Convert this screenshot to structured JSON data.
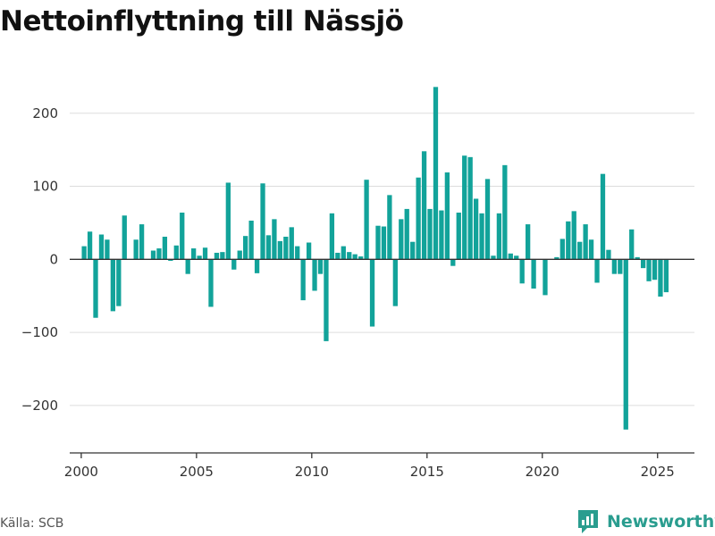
{
  "title": "Nettoinflyttning till Nässjö",
  "source": "Källa: SCB",
  "brand": {
    "name": "Newsworthy",
    "icon": "newsworthy-logo-icon"
  },
  "colors": {
    "bar": "#12a39a",
    "grid": "#dddddd",
    "axis": "#333333",
    "brand": "#2a9d8f"
  },
  "chart_data": {
    "type": "bar",
    "title": "Nettoinflyttning till Nässjö",
    "xlabel": "",
    "ylabel": "",
    "xlim": [
      1999.5,
      2026.6
    ],
    "ylim": [
      -265,
      245
    ],
    "grid": true,
    "x_ticks": [
      2000,
      2005,
      2010,
      2015,
      2020,
      2025
    ],
    "y_ticks": [
      200,
      100,
      0,
      -100,
      -200
    ],
    "y_tick_labels": [
      "200",
      "100",
      "0",
      "−100",
      "−200"
    ],
    "x": [
      2000.125,
      2000.375,
      2000.625,
      2000.875,
      2001.125,
      2001.375,
      2001.625,
      2001.875,
      2002.125,
      2002.375,
      2002.625,
      2002.875,
      2003.125,
      2003.375,
      2003.625,
      2003.875,
      2004.125,
      2004.375,
      2004.625,
      2004.875,
      2005.125,
      2005.375,
      2005.625,
      2005.875,
      2006.125,
      2006.375,
      2006.625,
      2006.875,
      2007.125,
      2007.375,
      2007.625,
      2007.875,
      2008.125,
      2008.375,
      2008.625,
      2008.875,
      2009.125,
      2009.375,
      2009.625,
      2009.875,
      2010.125,
      2010.375,
      2010.625,
      2010.875,
      2011.125,
      2011.375,
      2011.625,
      2011.875,
      2012.125,
      2012.375,
      2012.625,
      2012.875,
      2013.125,
      2013.375,
      2013.625,
      2013.875,
      2014.125,
      2014.375,
      2014.625,
      2014.875,
      2015.125,
      2015.375,
      2015.625,
      2015.875,
      2016.125,
      2016.375,
      2016.625,
      2016.875,
      2017.125,
      2017.375,
      2017.625,
      2017.875,
      2018.125,
      2018.375,
      2018.625,
      2018.875,
      2019.125,
      2019.375,
      2019.625,
      2019.875,
      2020.125,
      2020.375,
      2020.625,
      2020.875,
      2021.125,
      2021.375,
      2021.625,
      2021.875,
      2022.125,
      2022.375,
      2022.625,
      2022.875,
      2023.125,
      2023.375,
      2023.625,
      2023.875,
      2024.125,
      2024.375,
      2024.625,
      2024.875,
      2025.125,
      2025.375
    ],
    "values": [
      18,
      38,
      -80,
      34,
      27,
      -71,
      -64,
      60,
      0,
      27,
      48,
      0,
      12,
      15,
      31,
      -2,
      19,
      64,
      -20,
      15,
      5,
      16,
      -65,
      9,
      10,
      105,
      -14,
      12,
      32,
      53,
      -19,
      104,
      33,
      55,
      25,
      31,
      44,
      18,
      -56,
      23,
      -43,
      -20,
      -112,
      63,
      9,
      18,
      10,
      7,
      4,
      109,
      -92,
      46,
      45,
      88,
      -64,
      55,
      69,
      24,
      112,
      148,
      69,
      236,
      67,
      119,
      -9,
      64,
      142,
      140,
      83,
      63,
      110,
      5,
      63,
      129,
      8,
      5,
      -33,
      48,
      -40,
      0,
      -49,
      0,
      3,
      28,
      52,
      66,
      24,
      48,
      27,
      -32,
      117,
      13,
      -20,
      -20,
      -233,
      41,
      3,
      -12,
      -30,
      -28,
      -51,
      -45
    ]
  }
}
